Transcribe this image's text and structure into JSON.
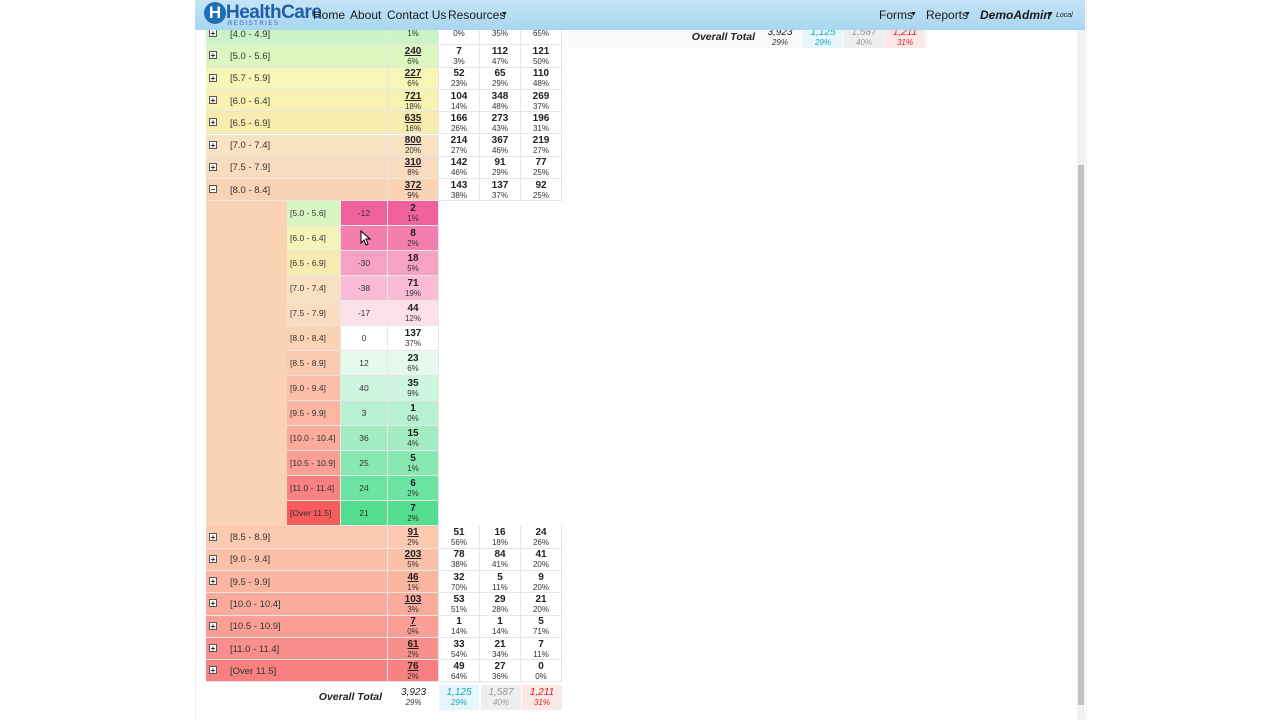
{
  "nav": {
    "brand": "HealthCare",
    "brand_sub": "REGISTRIES",
    "links": [
      "Home",
      "About",
      "Contact Us",
      "Resources"
    ],
    "right": [
      "Forms",
      "Reports"
    ],
    "user": "DemoAdmin",
    "env": "Local"
  },
  "table": {
    "rows_top": [
      {
        "label": "[4.0 - 4.9]",
        "color": "#caf4c6",
        "total_pct": "1%",
        "cells": [
          {
            "pct": "0%"
          },
          {
            "pct": "35%"
          },
          {
            "pct": "65%"
          }
        ]
      },
      {
        "label": "[5.0 - 5.6]",
        "color": "#dcf6c0",
        "total": "240",
        "total_pct": "6%",
        "cells": [
          {
            "n": "7",
            "pct": "3%"
          },
          {
            "n": "112",
            "pct": "47%"
          },
          {
            "n": "121",
            "pct": "50%"
          }
        ]
      },
      {
        "label": "[5.7 - 5.9]",
        "color": "#f6f6b6",
        "total": "227",
        "total_pct": "6%",
        "cells": [
          {
            "n": "52",
            "pct": "23%"
          },
          {
            "n": "65",
            "pct": "29%"
          },
          {
            "n": "110",
            "pct": "48%"
          }
        ]
      },
      {
        "label": "[6.0 - 6.4]",
        "color": "#f7f1b2",
        "total": "721",
        "total_pct": "18%",
        "cells": [
          {
            "n": "104",
            "pct": "14%"
          },
          {
            "n": "348",
            "pct": "48%"
          },
          {
            "n": "269",
            "pct": "37%"
          }
        ]
      },
      {
        "label": "[6.5 - 6.9]",
        "color": "#f8ebae",
        "total": "635",
        "total_pct": "16%",
        "cells": [
          {
            "n": "166",
            "pct": "26%"
          },
          {
            "n": "273",
            "pct": "43%"
          },
          {
            "n": "196",
            "pct": "31%"
          }
        ]
      },
      {
        "label": "[7.0 - 7.4]",
        "color": "#f8e2c2",
        "total": "800",
        "total_pct": "20%",
        "cells": [
          {
            "n": "214",
            "pct": "27%"
          },
          {
            "n": "367",
            "pct": "46%"
          },
          {
            "n": "219",
            "pct": "27%"
          }
        ]
      },
      {
        "label": "[7.5 - 7.9]",
        "color": "#f9dcc0",
        "total": "310",
        "total_pct": "8%",
        "cells": [
          {
            "n": "142",
            "pct": "46%"
          },
          {
            "n": "91",
            "pct": "29%"
          },
          {
            "n": "77",
            "pct": "25%"
          }
        ]
      },
      {
        "label": "[8.0 - 8.4]",
        "color": "#fad2b4",
        "total": "372",
        "total_pct": "9%",
        "cells": [
          {
            "n": "143",
            "pct": "38%"
          },
          {
            "n": "137",
            "pct": "37%"
          },
          {
            "n": "92",
            "pct": "25%"
          }
        ]
      }
    ],
    "subrows": [
      {
        "label": "[5.0 - 5.6]",
        "color": "#d8f6c4",
        "change": "-12",
        "tint": "#f0629c",
        "n": "2",
        "pct": "1%"
      },
      {
        "label": "[6.0 - 6.4]",
        "color": "#f5f3b8",
        "tint": "#f47fae",
        "n": "8",
        "pct": "2%"
      },
      {
        "label": "[6.5 - 6.9]",
        "color": "#f8ebb0",
        "change": "-30",
        "tint": "#f6a2c4",
        "n": "18",
        "pct": "5%"
      },
      {
        "label": "[7.0 - 7.4]",
        "color": "#f8e0c0",
        "change": "-38",
        "tint": "#f9bcd4",
        "n": "71",
        "pct": "19%"
      },
      {
        "label": "[7.5 - 7.9]",
        "color": "#fadcc0",
        "change": "-17",
        "tint": "#fde0ea",
        "n": "44",
        "pct": "12%"
      },
      {
        "label": "[8.0 - 8.4]",
        "color": "#fad3b5",
        "change": "0",
        "tint": "#ffffff",
        "n": "137",
        "pct": "37%"
      },
      {
        "label": "[8.5 - 8.9]",
        "color": "#fbcbb0",
        "change": "12",
        "tint": "#e6f9ee",
        "n": "23",
        "pct": "6%"
      },
      {
        "label": "[9.0 - 9.4]",
        "color": "#fbc0a8",
        "change": "40",
        "tint": "#cdf5df",
        "n": "35",
        "pct": "9%"
      },
      {
        "label": "[9.5 - 9.9]",
        "color": "#fbb7a2",
        "change": "3",
        "tint": "#b8f0d2",
        "n": "1",
        "pct": "0%"
      },
      {
        "label": "[10.0 - 10.4]",
        "color": "#fbab9c",
        "change": "36",
        "tint": "#a2ecc2",
        "n": "15",
        "pct": "4%"
      },
      {
        "label": "[10.5 - 10.9]",
        "color": "#fa9e96",
        "change": "25",
        "tint": "#88e8b2",
        "n": "5",
        "pct": "1%"
      },
      {
        "label": "[11.0 - 11.4]",
        "color": "#f88282",
        "change": "24",
        "tint": "#6ee4a2",
        "n": "6",
        "pct": "2%"
      },
      {
        "label": "[Over 11.5]",
        "color": "#f65c5c",
        "change": "21",
        "tint": "#52de8e",
        "n": "7",
        "pct": "2%"
      }
    ],
    "rows_bottom": [
      {
        "label": "[8.5 - 8.9]",
        "color": "#fbcab0",
        "total": "91",
        "total_pct": "2%",
        "cells": [
          {
            "n": "51",
            "pct": "56%"
          },
          {
            "n": "16",
            "pct": "18%"
          },
          {
            "n": "24",
            "pct": "26%"
          }
        ]
      },
      {
        "label": "[9.0 - 9.4]",
        "color": "#fbc0a8",
        "total": "203",
        "total_pct": "5%",
        "cells": [
          {
            "n": "78",
            "pct": "38%"
          },
          {
            "n": "84",
            "pct": "41%"
          },
          {
            "n": "41",
            "pct": "20%"
          }
        ]
      },
      {
        "label": "[9.5 - 9.9]",
        "color": "#fbb6a2",
        "total": "46",
        "total_pct": "1%",
        "cells": [
          {
            "n": "32",
            "pct": "70%"
          },
          {
            "n": "5",
            "pct": "11%"
          },
          {
            "n": "9",
            "pct": "20%"
          }
        ]
      },
      {
        "label": "[10.0 - 10.4]",
        "color": "#fbab9c",
        "total": "103",
        "total_pct": "3%",
        "cells": [
          {
            "n": "53",
            "pct": "51%"
          },
          {
            "n": "29",
            "pct": "28%"
          },
          {
            "n": "21",
            "pct": "20%"
          }
        ]
      },
      {
        "label": "[10.5 - 10.9]",
        "color": "#fa9e96",
        "total": "7",
        "total_pct": "0%",
        "cells": [
          {
            "n": "1",
            "pct": "14%"
          },
          {
            "n": "1",
            "pct": "14%"
          },
          {
            "n": "5",
            "pct": "71%"
          }
        ]
      },
      {
        "label": "[11.0 - 11.4]",
        "color": "#f98f8c",
        "total": "61",
        "total_pct": "2%",
        "cells": [
          {
            "n": "33",
            "pct": "54%"
          },
          {
            "n": "21",
            "pct": "34%"
          },
          {
            "n": "7",
            "pct": "11%"
          }
        ]
      },
      {
        "label": "[Over 11.5]",
        "color": "#f88080",
        "total": "76",
        "total_pct": "2%",
        "cells": [
          {
            "n": "49",
            "pct": "64%"
          },
          {
            "n": "27",
            "pct": "36%"
          },
          {
            "n": "0",
            "pct": "0%"
          }
        ]
      }
    ],
    "total": {
      "label": "Overall Total",
      "n": "3,923",
      "pct": "29%",
      "cells": [
        {
          "n": "1,125",
          "pct": "29%",
          "color": "#1aa3b8",
          "bg": "#e6f7fb"
        },
        {
          "n": "1,587",
          "pct": "40%",
          "color": "#999999",
          "bg": "#eeeeee"
        },
        {
          "n": "1,211",
          "pct": "31%",
          "color": "#e02020",
          "bg": "#fde8e8"
        }
      ]
    }
  },
  "summary": {
    "label": "Overall Total",
    "n": "3,923",
    "pct": "29%",
    "cells": [
      {
        "n": "1,125",
        "pct": "29%",
        "color": "#1aa3b8",
        "bg": "#e6f7fb"
      },
      {
        "n": "1,587",
        "pct": "40%",
        "color": "#999999",
        "bg": "#eeeeee"
      },
      {
        "n": "1,211",
        "pct": "31%",
        "color": "#e02020",
        "bg": "#fde8e8"
      }
    ]
  }
}
